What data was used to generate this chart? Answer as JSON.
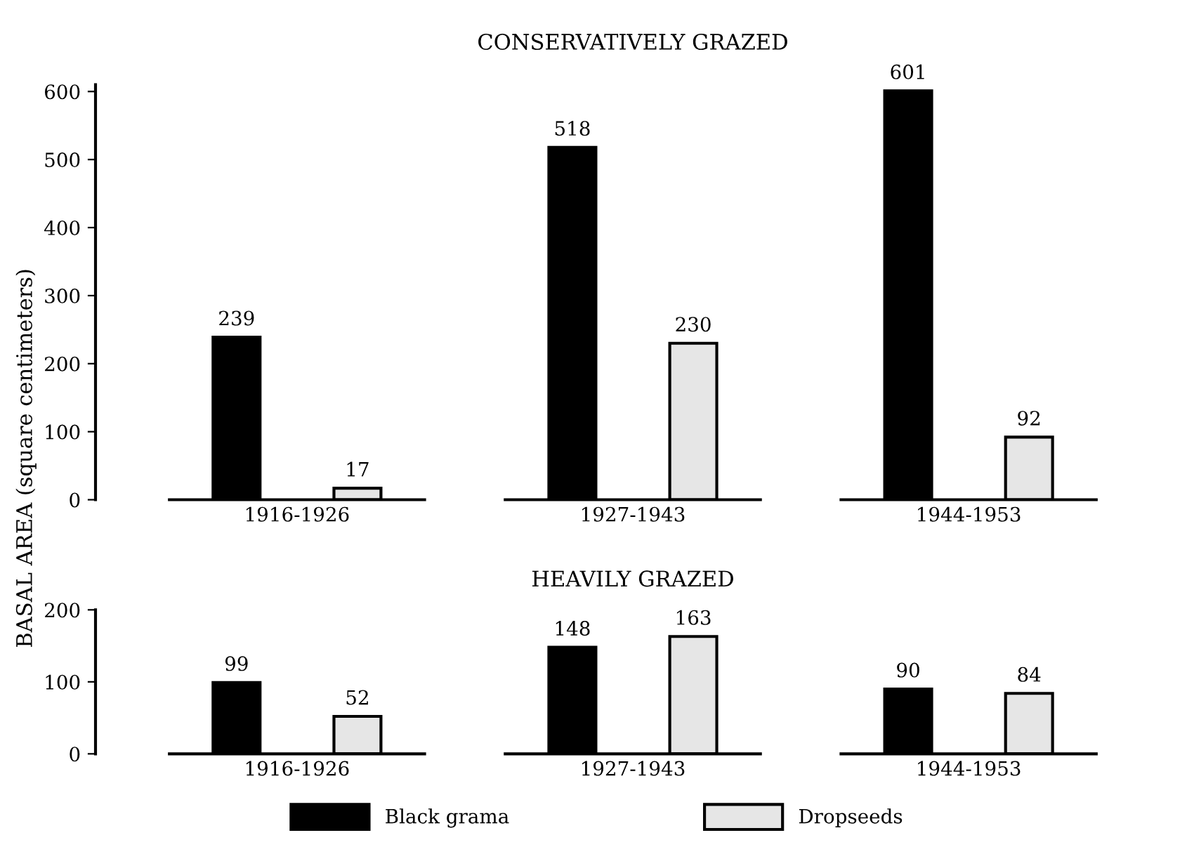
{
  "chart_data": [
    {
      "type": "bar",
      "title": "CONSERVATIVELY GRAZED",
      "ylabel": "BASAL AREA (square centimeters)",
      "categories": [
        "1916-1926",
        "1927-1943",
        "1944-1953"
      ],
      "series": [
        {
          "name": "Black grama",
          "color": "#000000",
          "values": [
            239,
            518,
            601
          ]
        },
        {
          "name": "Dropseeds",
          "color": "#e6e6e6",
          "values": [
            17,
            230,
            92
          ]
        }
      ],
      "ylim": [
        0,
        610
      ],
      "yticks": [
        0,
        100,
        200,
        300,
        400,
        500,
        600
      ],
      "data_labels": true,
      "legend": "bottom"
    },
    {
      "type": "bar",
      "title": "HEAVILY GRAZED",
      "categories": [
        "1916-1926",
        "1927-1943",
        "1944-1953"
      ],
      "series": [
        {
          "color": "#000000",
          "values": [
            99,
            148,
            90
          ]
        },
        {
          "color": "#e6e6e6",
          "values": [
            52,
            163,
            84
          ]
        }
      ],
      "ylim": [
        0,
        200
      ],
      "yticks": [
        0,
        100,
        200
      ],
      "data_labels": true
    }
  ]
}
